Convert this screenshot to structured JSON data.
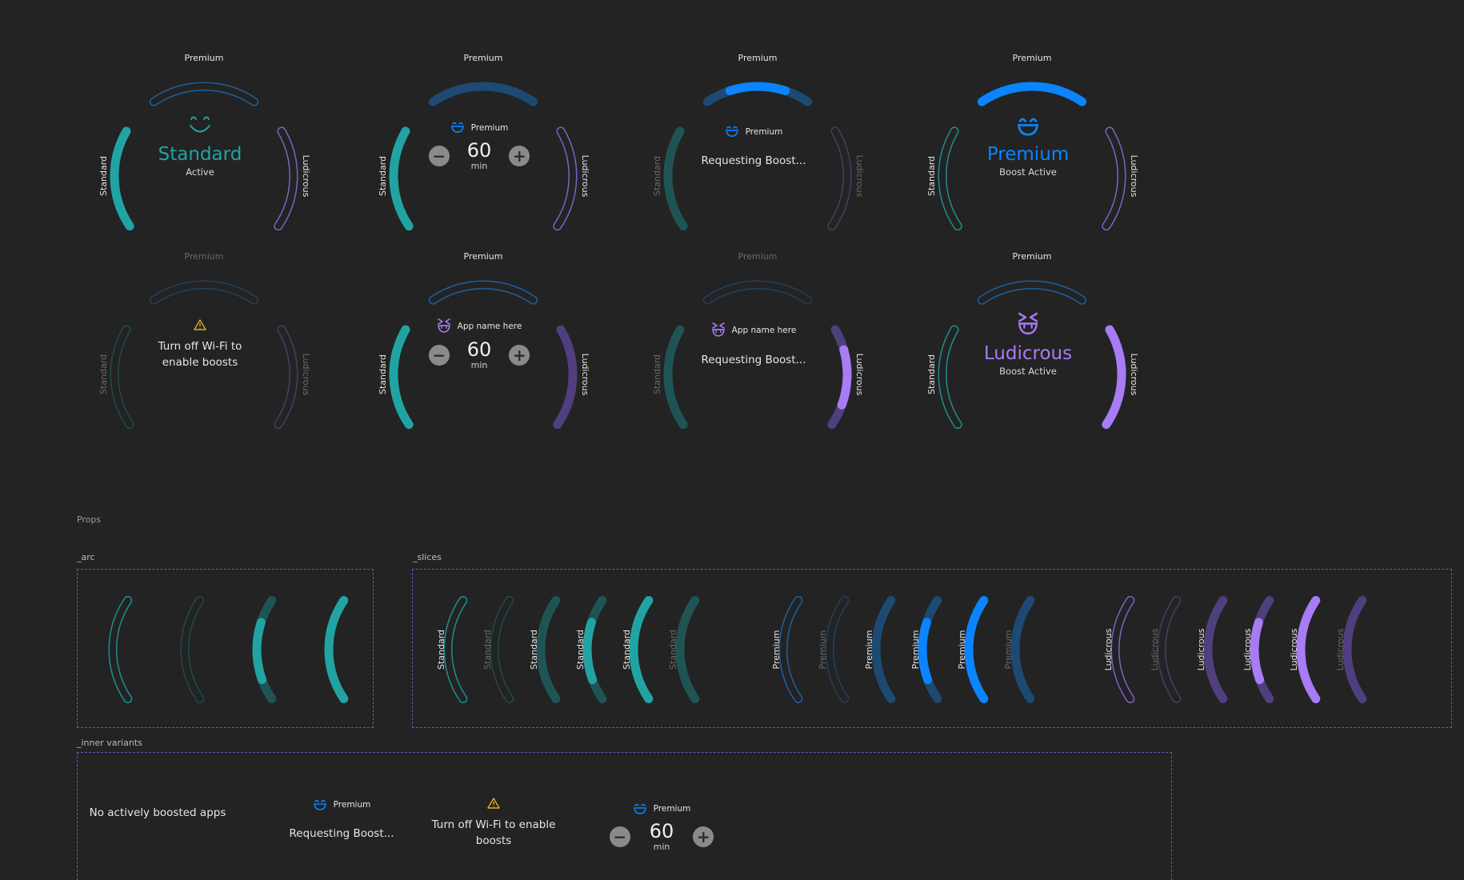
{
  "colors": {
    "teal": "#22a3a3",
    "teal_dim": "#205454",
    "blue": "#0a84ff",
    "blue_dim": "#1d4a73",
    "purple": "#a77cf5",
    "purple_dim": "#4f3f7e",
    "warning": "#e0b020"
  },
  "arc_labels": {
    "premium": "Premium",
    "standard": "Standard",
    "ludicrous": "Ludicrous"
  },
  "gauges": [
    {
      "mode": "standard",
      "title": "Standard",
      "status": "Active",
      "icon": "smile-icon"
    },
    {
      "mode": "premium-stepper",
      "header": "Premium",
      "value": "60",
      "unit": "min",
      "minus": "−",
      "plus": "+",
      "icon": "grin-icon"
    },
    {
      "mode": "premium-requesting",
      "header": "Premium",
      "status": "Requesting Boost...",
      "icon": "grin-icon"
    },
    {
      "mode": "premium-active",
      "title": "Premium",
      "status": "Boost Active",
      "icon": "grin-icon"
    },
    {
      "mode": "wifi-warning",
      "warning": "Turn off Wi-Fi to enable boosts",
      "icon": "warning-icon"
    },
    {
      "mode": "ludicrous-stepper",
      "header": "App name here",
      "value": "60",
      "unit": "min",
      "minus": "−",
      "plus": "+",
      "icon": "ludicrous-face-icon"
    },
    {
      "mode": "ludicrous-requesting",
      "header": "App name here",
      "status": "Requesting Boost...",
      "icon": "ludicrous-face-icon"
    },
    {
      "mode": "ludicrous-active",
      "title": "Ludicrous",
      "status": "Boost Active",
      "icon": "ludicrous-face-icon"
    }
  ],
  "props": {
    "title": "Props",
    "arc_section": "_arc",
    "slices_section": "_slices",
    "inner_section": "_inner variants"
  },
  "inner_variants": {
    "none": "No actively boosted apps",
    "requesting_header": "Premium",
    "requesting": "Requesting Boost...",
    "warning": "Turn off Wi-Fi to enable boosts",
    "stepper_header": "Premium",
    "stepper_value": "60",
    "stepper_unit": "min",
    "minus": "−",
    "plus": "+"
  }
}
